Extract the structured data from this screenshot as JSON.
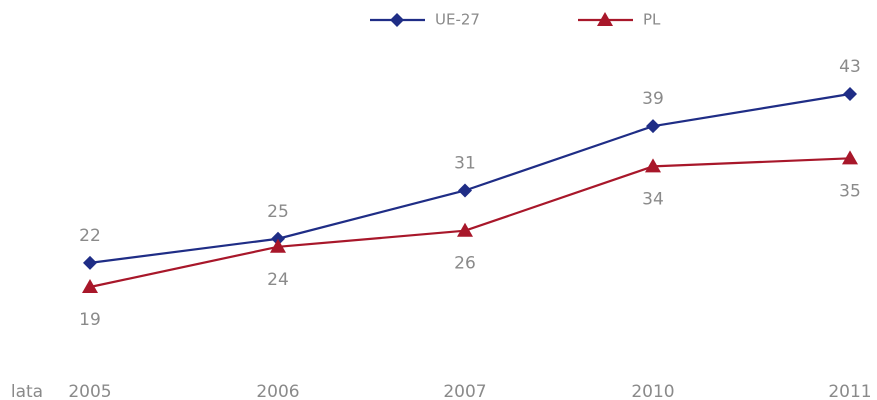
{
  "chart_data": {
    "type": "line",
    "x_label": "lata",
    "categories": [
      "2005",
      "2006",
      "2007",
      "2010",
      "2011"
    ],
    "series": [
      {
        "name": "UE-27",
        "color": "#1f2d86",
        "marker": "diamond",
        "values": [
          22,
          25,
          31,
          39,
          43
        ]
      },
      {
        "name": "PL",
        "color": "#a8172a",
        "marker": "triangle",
        "values": [
          19,
          24,
          26,
          34,
          35
        ]
      }
    ],
    "grid": false
  }
}
